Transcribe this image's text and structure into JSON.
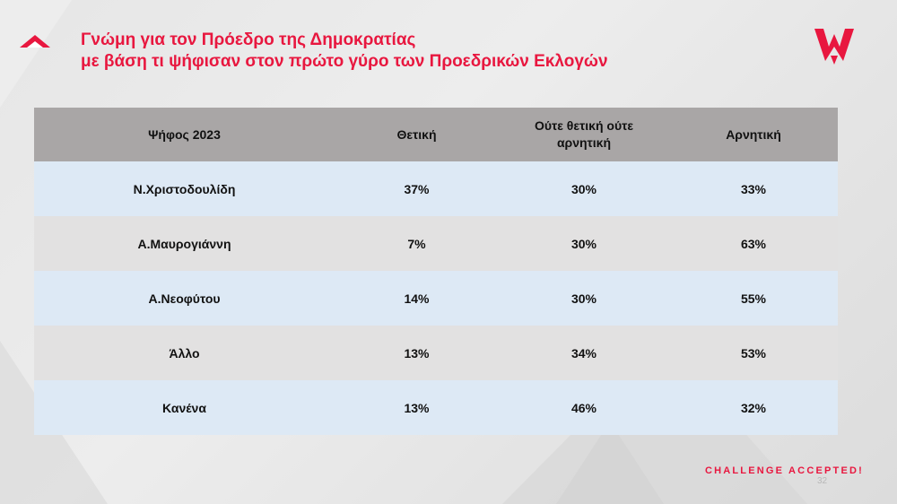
{
  "title": {
    "line1": "Γνώμη για τον Πρόεδρο της Δημοκρατίας",
    "line2": "με βάση τι ψήφισαν στον πρώτο γύρο των Προεδρικών Εκλογών"
  },
  "table": {
    "headers": [
      "Ψήφος 2023",
      "Θετική",
      "Ούτε θετική ούτε αρνητική",
      "Αρνητική"
    ],
    "rows": [
      [
        "Ν.Χριστοδουλίδη",
        "37%",
        "30%",
        "33%"
      ],
      [
        "Α.Μαυρογιάννη",
        "7%",
        "30%",
        "63%"
      ],
      [
        "Α.Νεοφύτου",
        "14%",
        "30%",
        "55%"
      ],
      [
        "Άλλο",
        "13%",
        "34%",
        "53%"
      ],
      [
        "Κανένα",
        "13%",
        "46%",
        "32%"
      ]
    ]
  },
  "footer": {
    "tagline": "CHALLENGE ACCEPTED!",
    "page_number": "32"
  },
  "colors": {
    "accent": "#e8173f",
    "header_bg": "#a9a6a6",
    "row_blue": "#dde9f5",
    "row_grey": "#e2e1e1"
  },
  "icons": {
    "title_marker": "red-triangle-icon",
    "logo": "w-logo-icon"
  }
}
